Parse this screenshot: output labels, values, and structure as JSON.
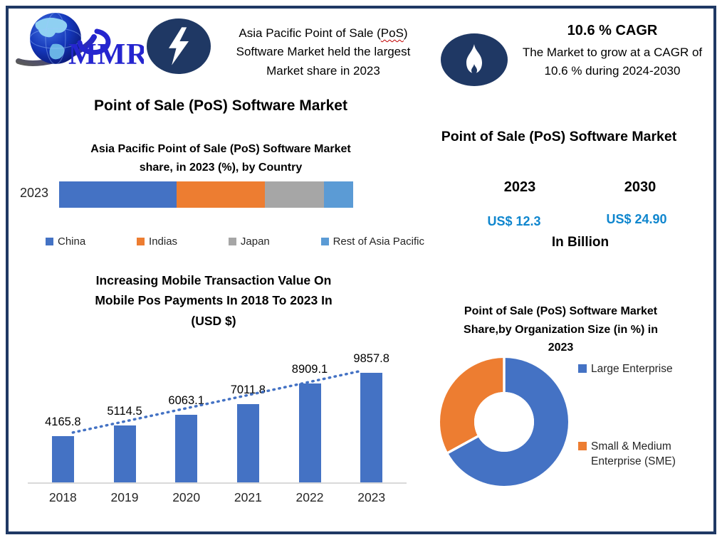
{
  "colors": {
    "navy": "#1f3864",
    "chart_blue": "#4472c4",
    "chart_orange": "#ed7d31",
    "chart_gray": "#a6a6a6",
    "chart_lightblue": "#5b9bd5",
    "value_blue": "#0f86ce",
    "logo_blue": "#2525cf"
  },
  "header": {
    "logo_text": "MMR",
    "callout": {
      "line1_pre": "Asia Pacific Point of Sale (",
      "line1_underlined": "PoS",
      "line1_post": ")",
      "line2": "Software Market held the largest",
      "line3": "Market share in 2023"
    },
    "cagr": {
      "title": "10.6 % CAGR",
      "line1": "The Market to grow at a CAGR of",
      "line2": "10.6 % during 2024-2030"
    }
  },
  "left": {
    "title": "Point of Sale (PoS) Software Market",
    "country_chart": {
      "title_lines": [
        "Asia Pacific Point of Sale (PoS) Software  Market",
        "share, in 2023 (%), by Country"
      ],
      "category_label": "2023"
    },
    "mobile_chart": {
      "title_lines": [
        "Increasing Mobile Transaction Value On",
        "Mobile Pos Payments In 2018 To 2023 In",
        "(USD $)"
      ]
    }
  },
  "right": {
    "title": "Point of Sale (PoS) Software Market",
    "year_left": "2023",
    "year_right": "2030",
    "value_left": "US$ 12.3",
    "value_right": "US$ 24.90",
    "unit": "In Billion",
    "org_chart_title_lines": [
      "Point of Sale (PoS) Software  Market",
      "Share,by Organization Size (in %) in",
      "2023"
    ]
  },
  "chart_data": [
    {
      "type": "bar",
      "variant": "horizontal-stacked",
      "title": "Asia Pacific Point of Sale (PoS) Software Market share, in 2023 (%), by Country",
      "categories": [
        "2023"
      ],
      "series": [
        {
          "name": "China",
          "values": [
            40
          ],
          "color": "#4472c4"
        },
        {
          "name": "Indias",
          "values": [
            30
          ],
          "color": "#ed7d31"
        },
        {
          "name": "Japan",
          "values": [
            20
          ],
          "color": "#a6a6a6"
        },
        {
          "name": "Rest of Asia Pacific",
          "values": [
            10
          ],
          "color": "#5b9bd5"
        }
      ],
      "values_estimated": true,
      "legend_position": "bottom",
      "xlim": [
        0,
        100
      ]
    },
    {
      "type": "bar",
      "title": "Increasing Mobile Transaction Value On Mobile Pos Payments In 2018 To 2023 In (USD $)",
      "categories": [
        "2018",
        "2019",
        "2020",
        "2021",
        "2022",
        "2023"
      ],
      "values": [
        4165.8,
        5114.5,
        6063.1,
        7011.8,
        8909.1,
        9857.8
      ],
      "data_labels": [
        "4165.8",
        "5114.5",
        "6063.1",
        "7011.8",
        "8909.1",
        "9857.8"
      ],
      "bar_color": "#4472c4",
      "trendline": {
        "style": "dotted",
        "color": "#4472c4"
      },
      "grid": false,
      "ylim": [
        0,
        10400
      ]
    },
    {
      "type": "pie",
      "variant": "donut",
      "title": "Point of Sale (PoS) Software Market Share,by Organization Size (in %) in 2023",
      "labels": [
        "Large Enterprise",
        "Small & Medium Enterprise (SME)"
      ],
      "values": [
        67,
        33
      ],
      "values_estimated": true,
      "colors": [
        "#4472c4",
        "#ed7d31"
      ],
      "legend_position": "right"
    }
  ]
}
